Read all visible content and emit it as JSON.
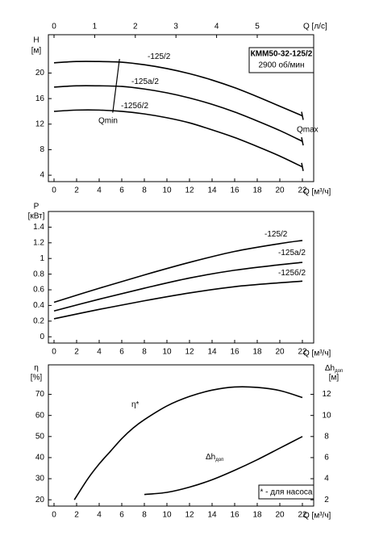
{
  "chart_data": [
    {
      "type": "line",
      "title": "КММ50-32-125/2",
      "subtitle": "2900 об/мин",
      "y_label": "H",
      "y_unit": "[м]",
      "x_label": "Q [м³/ч]",
      "x2_label": "Q [л/с]",
      "xlim": [
        -0.5,
        23
      ],
      "xticks": [
        0,
        2,
        4,
        6,
        8,
        10,
        12,
        14,
        16,
        18,
        20,
        22
      ],
      "x2lim": [
        -0.139,
        6.389
      ],
      "x2ticks": [
        0,
        1,
        2,
        3,
        4,
        5
      ],
      "ylim": [
        3,
        26
      ],
      "yticks": [
        4,
        8,
        12,
        16,
        20
      ],
      "series": [
        {
          "name": "-125/2",
          "color": "#000000",
          "x": [
            0,
            2,
            4,
            6,
            8,
            10,
            12,
            14,
            16,
            18,
            20,
            22
          ],
          "values": [
            21.6,
            21.8,
            21.8,
            21.7,
            21.3,
            20.7,
            19.9,
            18.9,
            17.7,
            16.3,
            14.8,
            13.3
          ]
        },
        {
          "name": "-125а/2",
          "color": "#000000",
          "x": [
            0,
            2,
            4,
            6,
            8,
            10,
            12,
            14,
            16,
            18,
            20,
            22
          ],
          "values": [
            17.8,
            18.0,
            18.0,
            17.9,
            17.5,
            16.9,
            16.1,
            15.1,
            13.9,
            12.5,
            11.0,
            9.3
          ]
        },
        {
          "name": "-125б/2",
          "color": "#000000",
          "x": [
            0,
            2,
            4,
            6,
            8,
            10,
            12,
            14,
            16,
            18,
            20,
            22
          ],
          "values": [
            14.0,
            14.2,
            14.2,
            14.0,
            13.6,
            13.0,
            12.2,
            11.1,
            9.9,
            8.5,
            7.0,
            5.3
          ]
        }
      ],
      "qmin": {
        "label": "Qmin",
        "x": [
          5.8,
          5.2
        ],
        "y": [
          22.2,
          13.8
        ]
      },
      "qmax_label": "Qmax"
    },
    {
      "type": "line",
      "y_label": "P",
      "y_unit": "[кВт]",
      "x_label": "Q [м³/ч]",
      "xlim": [
        -0.5,
        23
      ],
      "xticks": [
        0,
        2,
        4,
        6,
        8,
        10,
        12,
        14,
        16,
        18,
        20,
        22
      ],
      "ylim": [
        -0.08,
        1.6
      ],
      "yticks": [
        0,
        0.2,
        0.4,
        0.6,
        0.8,
        1,
        1.2,
        1.4
      ],
      "series": [
        {
          "name": "-125/2",
          "color": "#000000",
          "x": [
            0,
            4,
            8,
            12,
            16,
            20,
            22
          ],
          "values": [
            0.44,
            0.62,
            0.79,
            0.95,
            1.09,
            1.19,
            1.23
          ]
        },
        {
          "name": "-125а/2",
          "color": "#000000",
          "x": [
            0,
            4,
            8,
            12,
            16,
            20,
            22
          ],
          "values": [
            0.33,
            0.48,
            0.62,
            0.75,
            0.85,
            0.92,
            0.95
          ]
        },
        {
          "name": "-125б/2",
          "color": "#000000",
          "x": [
            0,
            4,
            8,
            12,
            16,
            20,
            22
          ],
          "values": [
            0.23,
            0.35,
            0.46,
            0.56,
            0.64,
            0.69,
            0.71
          ]
        }
      ]
    },
    {
      "type": "line",
      "y_label": "η",
      "y_unit": "[%]",
      "y2_label": "Δh",
      "y2_label_sub": "доп",
      "y2_unit": "[м]",
      "x_label": "Q [м³/ч]",
      "xlim": [
        -0.5,
        23
      ],
      "xticks": [
        0,
        2,
        4,
        6,
        8,
        10,
        12,
        14,
        16,
        18,
        20,
        22
      ],
      "ylim": [
        17,
        84
      ],
      "yticks": [
        20,
        30,
        40,
        50,
        60,
        70
      ],
      "y2lim": [
        1.4,
        14.8
      ],
      "y2ticks": [
        2,
        4,
        6,
        8,
        10,
        12
      ],
      "series": [
        {
          "name": "η*",
          "color": "#000000",
          "x": [
            1.8,
            3,
            4,
            5,
            6,
            7,
            8,
            10,
            12,
            14,
            16,
            18,
            20,
            22
          ],
          "values": [
            20,
            30,
            37,
            43,
            49,
            54,
            58,
            64.5,
            69,
            72,
            73.5,
            73.3,
            71.8,
            68.5
          ]
        },
        {
          "name": "Δh",
          "name_sub": "доп",
          "color": "#000000",
          "axis": "y2",
          "x": [
            8,
            10,
            12,
            14,
            16,
            18,
            20,
            22
          ],
          "values": [
            2.5,
            2.7,
            3.2,
            3.9,
            4.8,
            5.8,
            6.9,
            8.0
          ]
        }
      ],
      "note": "* - для насоса"
    }
  ]
}
